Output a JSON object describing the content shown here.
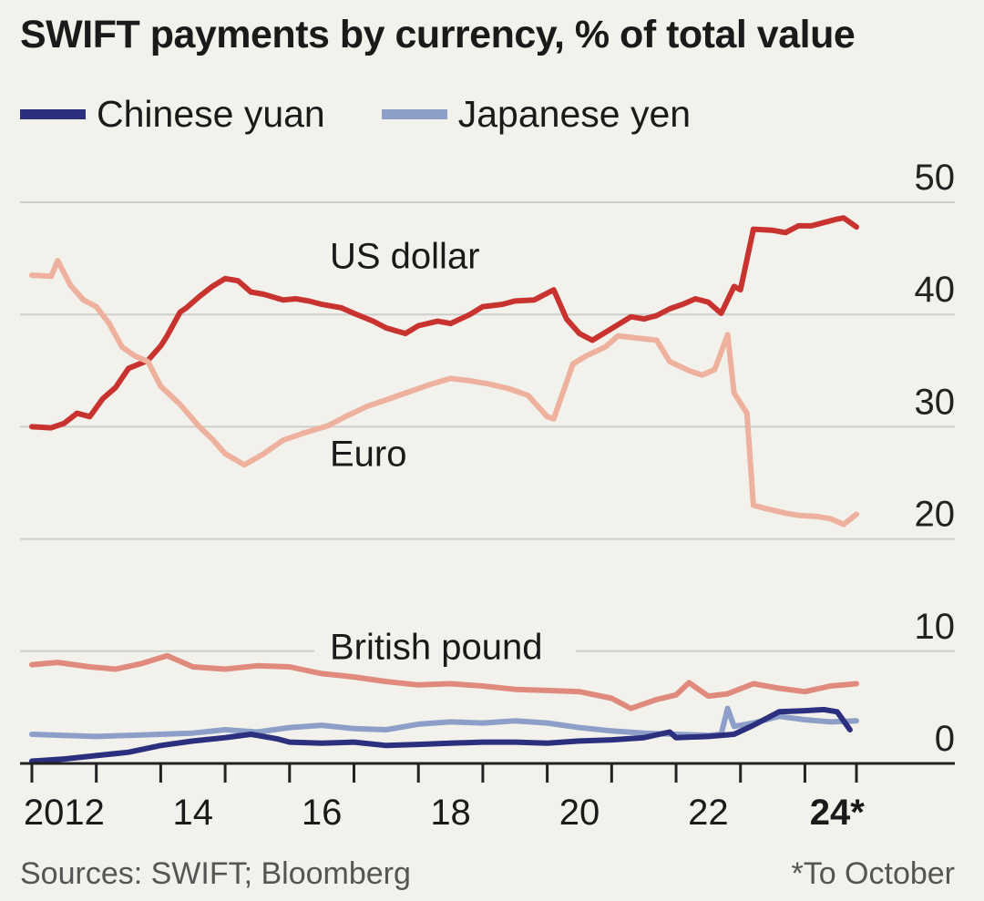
{
  "chart_data": {
    "type": "line",
    "title": "SWIFT payments by currency, % of total value",
    "ylabel": "% of total value",
    "xlabel": "",
    "ylim": [
      0,
      50
    ],
    "y_ticks": [
      "0",
      "10",
      "20",
      "30",
      "40",
      "50"
    ],
    "x_tick_labels": [
      {
        "year": 2012,
        "label": "2012",
        "bold": false
      },
      {
        "year": 2014,
        "label": "14",
        "bold": false
      },
      {
        "year": 2016,
        "label": "16",
        "bold": false
      },
      {
        "year": 2018,
        "label": "18",
        "bold": false
      },
      {
        "year": 2020,
        "label": "20",
        "bold": false
      },
      {
        "year": 2022,
        "label": "22",
        "bold": false
      },
      {
        "year": 2024,
        "label": "24*",
        "bold": true
      }
    ],
    "x_range": [
      2012,
      2024.8
    ],
    "legend": [
      {
        "name": "Chinese yuan",
        "color": "#2b2f7d"
      },
      {
        "name": "Japanese yen",
        "color": "#8d9fc8"
      }
    ],
    "series": [
      {
        "name": "US dollar",
        "label": "US dollar",
        "label_at": [
          2016.3,
          44.1
        ],
        "color": "#c8332f",
        "points": [
          [
            2012.0,
            30.0
          ],
          [
            2012.3,
            29.9
          ],
          [
            2012.5,
            30.3
          ],
          [
            2012.7,
            31.2
          ],
          [
            2012.9,
            30.9
          ],
          [
            2013.1,
            32.5
          ],
          [
            2013.3,
            33.5
          ],
          [
            2013.5,
            35.2
          ],
          [
            2013.8,
            35.9
          ],
          [
            2014.0,
            37.2
          ],
          [
            2014.1,
            38.1
          ],
          [
            2014.3,
            40.2
          ],
          [
            2014.4,
            40.6
          ],
          [
            2014.6,
            41.6
          ],
          [
            2014.8,
            42.5
          ],
          [
            2015.0,
            43.2
          ],
          [
            2015.2,
            43.0
          ],
          [
            2015.4,
            42.0
          ],
          [
            2015.6,
            41.8
          ],
          [
            2015.9,
            41.3
          ],
          [
            2016.1,
            41.4
          ],
          [
            2016.3,
            41.2
          ],
          [
            2016.5,
            40.9
          ],
          [
            2016.8,
            40.6
          ],
          [
            2017.0,
            40.1
          ],
          [
            2017.3,
            39.4
          ],
          [
            2017.5,
            38.8
          ],
          [
            2017.8,
            38.3
          ],
          [
            2018.0,
            39.0
          ],
          [
            2018.3,
            39.4
          ],
          [
            2018.5,
            39.2
          ],
          [
            2018.8,
            40.0
          ],
          [
            2019.0,
            40.7
          ],
          [
            2019.3,
            40.9
          ],
          [
            2019.5,
            41.2
          ],
          [
            2019.8,
            41.3
          ],
          [
            2020.1,
            42.2
          ],
          [
            2020.3,
            39.6
          ],
          [
            2020.5,
            38.3
          ],
          [
            2020.7,
            37.7
          ],
          [
            2020.9,
            38.4
          ],
          [
            2021.1,
            39.1
          ],
          [
            2021.3,
            39.8
          ],
          [
            2021.5,
            39.6
          ],
          [
            2021.7,
            39.9
          ],
          [
            2021.9,
            40.5
          ],
          [
            2022.1,
            40.9
          ],
          [
            2022.3,
            41.4
          ],
          [
            2022.5,
            41.1
          ],
          [
            2022.7,
            40.1
          ],
          [
            2022.9,
            42.5
          ],
          [
            2023.0,
            42.2
          ],
          [
            2023.2,
            47.6
          ],
          [
            2023.5,
            47.5
          ],
          [
            2023.7,
            47.3
          ],
          [
            2023.9,
            47.9
          ],
          [
            2024.1,
            47.9
          ],
          [
            2024.3,
            48.2
          ],
          [
            2024.5,
            48.5
          ],
          [
            2024.6,
            48.6
          ],
          [
            2024.8,
            47.8
          ]
        ]
      },
      {
        "name": "Euro",
        "label": "Euro",
        "label_at": [
          2016.3,
          26.5
        ],
        "color": "#edb19d",
        "points": [
          [
            2012.0,
            43.5
          ],
          [
            2012.3,
            43.4
          ],
          [
            2012.4,
            44.8
          ],
          [
            2012.6,
            42.6
          ],
          [
            2012.8,
            41.3
          ],
          [
            2013.0,
            40.7
          ],
          [
            2013.2,
            39.2
          ],
          [
            2013.4,
            37.1
          ],
          [
            2013.6,
            36.3
          ],
          [
            2013.8,
            35.8
          ],
          [
            2014.0,
            33.6
          ],
          [
            2014.3,
            32.0
          ],
          [
            2014.6,
            30.0
          ],
          [
            2014.8,
            28.9
          ],
          [
            2015.0,
            27.6
          ],
          [
            2015.3,
            26.6
          ],
          [
            2015.6,
            27.6
          ],
          [
            2015.9,
            28.8
          ],
          [
            2016.2,
            29.4
          ],
          [
            2016.6,
            30.1
          ],
          [
            2016.9,
            31.0
          ],
          [
            2017.2,
            31.8
          ],
          [
            2017.6,
            32.6
          ],
          [
            2017.9,
            33.2
          ],
          [
            2018.2,
            33.8
          ],
          [
            2018.5,
            34.3
          ],
          [
            2018.8,
            34.1
          ],
          [
            2019.1,
            33.8
          ],
          [
            2019.4,
            33.4
          ],
          [
            2019.7,
            32.8
          ],
          [
            2020.0,
            30.9
          ],
          [
            2020.1,
            30.7
          ],
          [
            2020.4,
            35.6
          ],
          [
            2020.6,
            36.3
          ],
          [
            2020.9,
            37.1
          ],
          [
            2021.1,
            38.1
          ],
          [
            2021.4,
            37.9
          ],
          [
            2021.7,
            37.7
          ],
          [
            2021.9,
            35.8
          ],
          [
            2022.2,
            35.0
          ],
          [
            2022.4,
            34.6
          ],
          [
            2022.6,
            35.1
          ],
          [
            2022.8,
            38.2
          ],
          [
            2022.9,
            33.0
          ],
          [
            2023.1,
            31.2
          ],
          [
            2023.2,
            23.0
          ],
          [
            2023.4,
            22.7
          ],
          [
            2023.7,
            22.3
          ],
          [
            2023.9,
            22.1
          ],
          [
            2024.2,
            22.0
          ],
          [
            2024.4,
            21.8
          ],
          [
            2024.6,
            21.3
          ],
          [
            2024.8,
            22.2
          ]
        ]
      },
      {
        "name": "British pound",
        "label": "British pound",
        "label_at": [
          2016.3,
          9.3
        ],
        "color": "#e0897d",
        "points": [
          [
            2012.0,
            8.8
          ],
          [
            2012.4,
            9.0
          ],
          [
            2012.9,
            8.6
          ],
          [
            2013.3,
            8.4
          ],
          [
            2013.7,
            8.9
          ],
          [
            2014.1,
            9.6
          ],
          [
            2014.5,
            8.6
          ],
          [
            2015.0,
            8.4
          ],
          [
            2015.5,
            8.7
          ],
          [
            2016.0,
            8.6
          ],
          [
            2016.5,
            8.0
          ],
          [
            2017.0,
            7.7
          ],
          [
            2017.5,
            7.3
          ],
          [
            2018.0,
            7.0
          ],
          [
            2018.5,
            7.1
          ],
          [
            2019.0,
            6.9
          ],
          [
            2019.5,
            6.6
          ],
          [
            2020.0,
            6.5
          ],
          [
            2020.5,
            6.4
          ],
          [
            2021.0,
            5.8
          ],
          [
            2021.3,
            4.9
          ],
          [
            2021.7,
            5.7
          ],
          [
            2022.0,
            6.1
          ],
          [
            2022.2,
            7.2
          ],
          [
            2022.5,
            6.0
          ],
          [
            2022.8,
            6.2
          ],
          [
            2023.2,
            7.1
          ],
          [
            2023.6,
            6.7
          ],
          [
            2024.0,
            6.4
          ],
          [
            2024.4,
            6.9
          ],
          [
            2024.8,
            7.1
          ]
        ]
      },
      {
        "name": "Japanese yen",
        "color": "#8d9fc8",
        "points": [
          [
            2012.0,
            2.6
          ],
          [
            2012.5,
            2.5
          ],
          [
            2013.0,
            2.4
          ],
          [
            2013.5,
            2.5
          ],
          [
            2014.0,
            2.6
          ],
          [
            2014.5,
            2.7
          ],
          [
            2015.0,
            3.0
          ],
          [
            2015.5,
            2.8
          ],
          [
            2016.0,
            3.2
          ],
          [
            2016.5,
            3.4
          ],
          [
            2017.0,
            3.1
          ],
          [
            2017.5,
            3.0
          ],
          [
            2018.0,
            3.5
          ],
          [
            2018.5,
            3.7
          ],
          [
            2019.0,
            3.6
          ],
          [
            2019.5,
            3.8
          ],
          [
            2020.0,
            3.6
          ],
          [
            2020.5,
            3.2
          ],
          [
            2021.0,
            2.9
          ],
          [
            2021.5,
            2.7
          ],
          [
            2022.0,
            2.6
          ],
          [
            2022.5,
            2.5
          ],
          [
            2022.7,
            2.6
          ],
          [
            2022.8,
            4.9
          ],
          [
            2022.9,
            3.3
          ],
          [
            2023.2,
            3.6
          ],
          [
            2023.6,
            4.2
          ],
          [
            2024.0,
            3.9
          ],
          [
            2024.4,
            3.7
          ],
          [
            2024.8,
            3.8
          ]
        ]
      },
      {
        "name": "Chinese yuan",
        "color": "#2b2f7d",
        "points": [
          [
            2012.0,
            0.2
          ],
          [
            2012.5,
            0.4
          ],
          [
            2013.0,
            0.7
          ],
          [
            2013.5,
            1.0
          ],
          [
            2014.0,
            1.6
          ],
          [
            2014.5,
            2.0
          ],
          [
            2015.0,
            2.3
          ],
          [
            2015.4,
            2.6
          ],
          [
            2015.8,
            2.2
          ],
          [
            2016.0,
            1.9
          ],
          [
            2016.5,
            1.8
          ],
          [
            2017.0,
            1.9
          ],
          [
            2017.5,
            1.6
          ],
          [
            2018.0,
            1.7
          ],
          [
            2018.5,
            1.8
          ],
          [
            2019.0,
            1.9
          ],
          [
            2019.5,
            1.9
          ],
          [
            2020.0,
            1.8
          ],
          [
            2020.5,
            2.0
          ],
          [
            2021.0,
            2.1
          ],
          [
            2021.5,
            2.3
          ],
          [
            2021.9,
            2.8
          ],
          [
            2022.0,
            2.3
          ],
          [
            2022.5,
            2.4
          ],
          [
            2022.9,
            2.6
          ],
          [
            2023.2,
            3.4
          ],
          [
            2023.6,
            4.6
          ],
          [
            2024.0,
            4.7
          ],
          [
            2024.3,
            4.8
          ],
          [
            2024.5,
            4.6
          ],
          [
            2024.7,
            3.0
          ]
        ]
      }
    ]
  },
  "footer": {
    "sources": "Sources: SWIFT; Bloomberg",
    "note": "*To October"
  }
}
